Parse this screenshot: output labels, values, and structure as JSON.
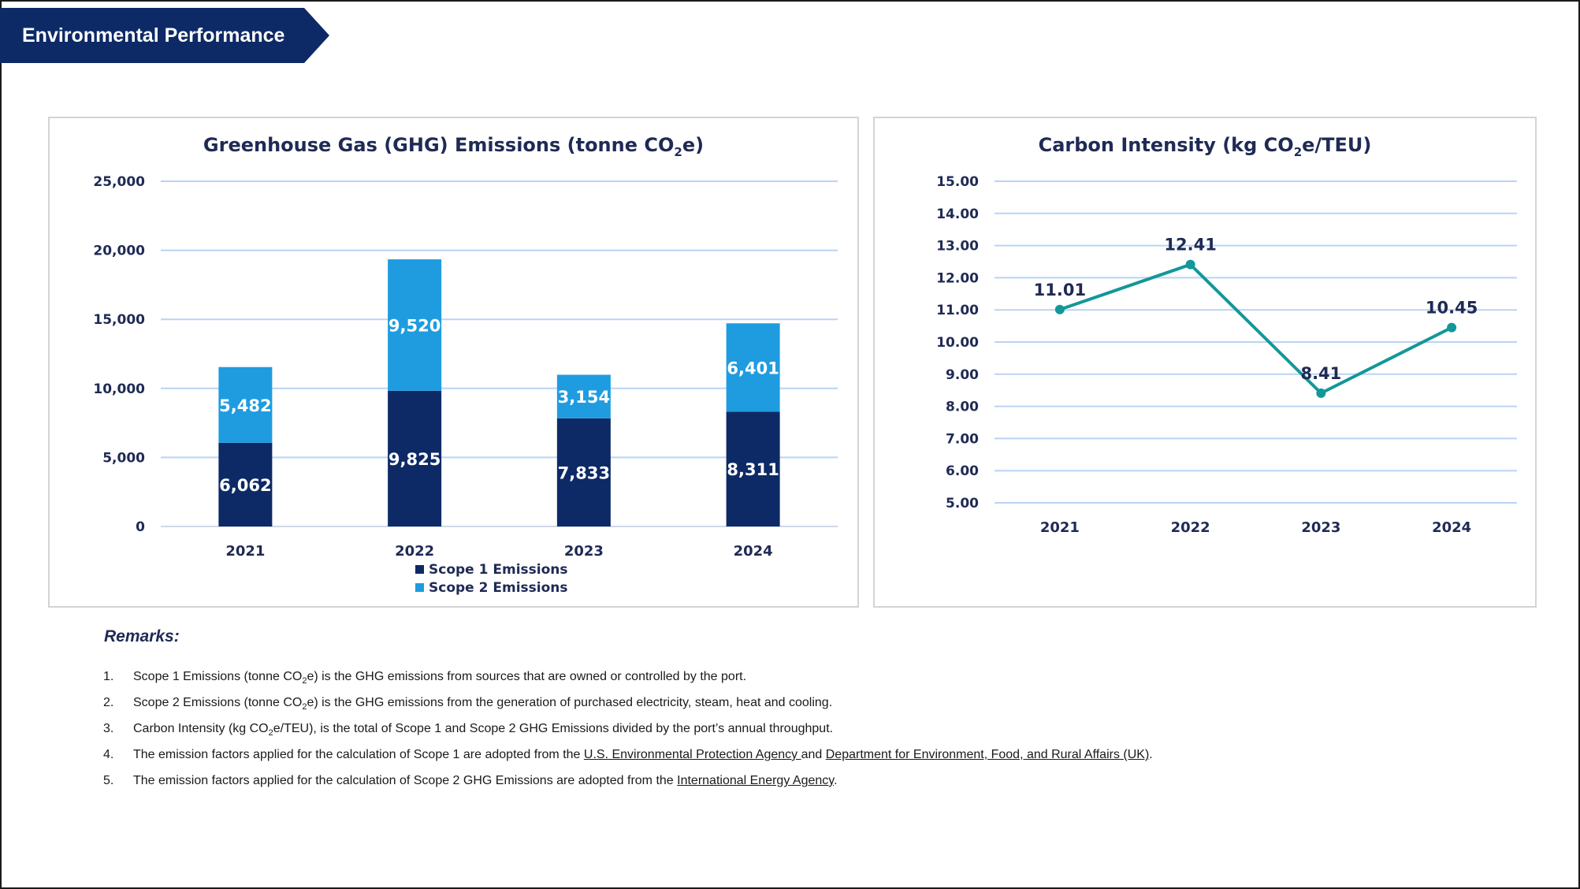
{
  "banner": {
    "title": "Environmental Performance",
    "color": "#0d2a66"
  },
  "chart_data": [
    {
      "type": "bar",
      "stacked": true,
      "title_main": "Greenhouse Gas (GHG) Emissions (tonne CO",
      "title_sub": "2",
      "title_end": "e)",
      "categories": [
        "2021",
        "2022",
        "2023",
        "2024"
      ],
      "series": [
        {
          "name": "Scope 1 Emissions",
          "values": [
            6062,
            9825,
            7833,
            8311
          ],
          "labels": [
            "6,062",
            "9,825",
            "7,833",
            "8,311"
          ],
          "color": "#0d2a66"
        },
        {
          "name": "Scope 2 Emissions",
          "values": [
            5482,
            9520,
            3154,
            6401
          ],
          "labels": [
            "5,482",
            "9,520",
            "3,154",
            "6,401"
          ],
          "color": "#1f9ce0"
        }
      ],
      "ylim": [
        0,
        25000
      ],
      "yticks": [
        0,
        5000,
        10000,
        15000,
        20000,
        25000
      ],
      "ytick_labels": [
        "0",
        "5,000",
        "10,000",
        "15,000",
        "20,000",
        "25,000"
      ],
      "grid": true,
      "legend_position": "bottom"
    },
    {
      "type": "line",
      "title_main": "Carbon Intensity (kg CO",
      "title_sub": "2",
      "title_end": "e/TEU)",
      "categories": [
        "2021",
        "2022",
        "2023",
        "2024"
      ],
      "values": [
        11.01,
        12.41,
        8.41,
        10.45
      ],
      "labels": [
        "11.01",
        "12.41",
        "8.41",
        "10.45"
      ],
      "color": "#13979a",
      "ylim": [
        5,
        15
      ],
      "yticks": [
        5,
        6,
        7,
        8,
        9,
        10,
        11,
        12,
        13,
        14,
        15
      ],
      "ytick_labels": [
        "5.00",
        "6.00",
        "7.00",
        "8.00",
        "9.00",
        "10.00",
        "11.00",
        "12.00",
        "13.00",
        "14.00",
        "15.00"
      ],
      "grid": true
    }
  ],
  "remarks": {
    "title": "Remarks:",
    "items": [
      {
        "num": "1.",
        "pre": "Scope 1 Emissions (tonne CO",
        "sub": "2",
        "post": "e) is the GHG emissions from sources that are owned or controlled by the port."
      },
      {
        "num": "2.",
        "pre": "Scope 2 Emissions (tonne CO",
        "sub": "2",
        "post": "e) is the GHG emissions from the generation of purchased electricity, steam, heat and cooling."
      },
      {
        "num": "3.",
        "pre": "Carbon Intensity (kg CO",
        "sub": "2",
        "post": "e/TEU), is the total of Scope 1 and Scope 2 GHG Emissions divided by the port’s annual throughput."
      },
      {
        "num": "4.",
        "pre": "The emission factors applied for the calculation of Scope 1 are adopted from the ",
        "link1": "U.S. Environmental Protection Agency ",
        "mid": "and ",
        "link2": "Department for Environment, Food, and Rural Affairs (UK)",
        "post": "."
      },
      {
        "num": "5.",
        "pre": "The emission factors applied for the calculation of Scope 2 GHG Emissions are adopted from the ",
        "link1": "International Energy Agency",
        "post": "."
      }
    ]
  }
}
